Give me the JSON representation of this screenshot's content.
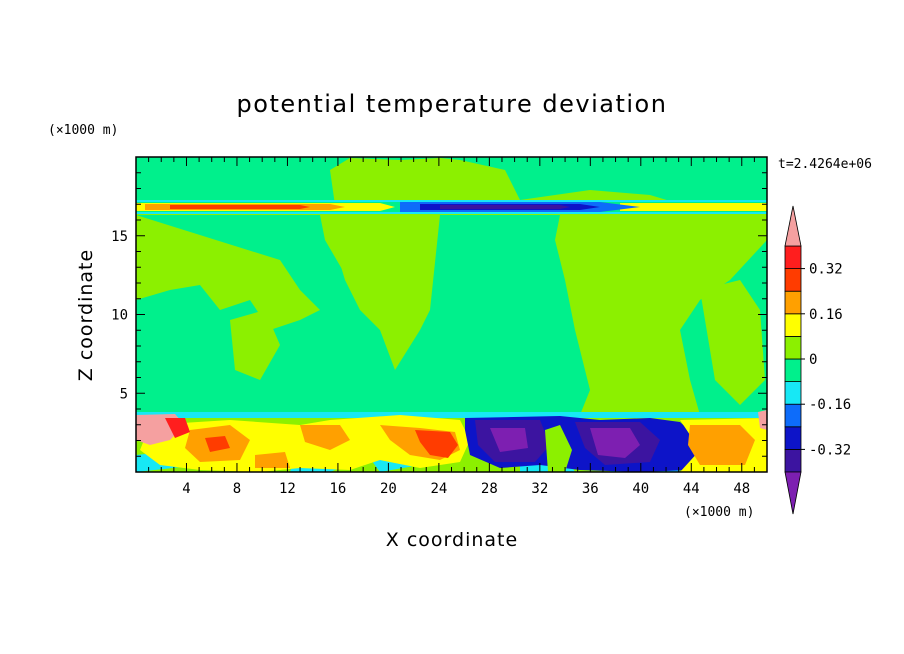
{
  "chart_data": {
    "type": "heatmap",
    "title": "potential temperature deviation",
    "xlabel": "X coordinate",
    "ylabel": "Z coordinate",
    "x_unit": "(×1000 m)",
    "y_unit": "(×1000 m)",
    "time_label": "t=2.4264e+06",
    "xlim": [
      0,
      50
    ],
    "ylim": [
      0,
      20
    ],
    "x_ticks": [
      4,
      8,
      12,
      16,
      20,
      24,
      28,
      32,
      36,
      40,
      44,
      48
    ],
    "y_ticks": [
      5,
      10,
      15
    ],
    "colorbar": {
      "levels": [
        -0.4,
        -0.32,
        -0.24,
        -0.16,
        -0.08,
        0,
        0.08,
        0.16,
        0.24,
        0.32,
        0.4
      ],
      "tick_labels": [
        "0.32",
        "0.16",
        "0",
        "-0.16",
        "-0.32"
      ],
      "tick_values": [
        0.32,
        0.16,
        0,
        -0.16,
        -0.32
      ],
      "colors_low_to_high": [
        "#7d1fb1",
        "#3c14a0",
        "#0d14c8",
        "#0d6cfa",
        "#17e8f5",
        "#00f08c",
        "#8cf000",
        "#ffff00",
        "#ffa000",
        "#ff3c00",
        "#ff1e1e",
        "#f5a0a0"
      ],
      "extend": "both"
    },
    "regions": [
      {
        "name": "background",
        "value": 0.04
      },
      {
        "name": "upper-band-warm",
        "value": 0.2
      },
      {
        "name": "upper-band-cold",
        "value": -0.3
      },
      {
        "name": "lower-warm-left",
        "value": 0.25
      },
      {
        "name": "lower-cold-center",
        "value": -0.35
      },
      {
        "name": "lower-warm-right",
        "value": 0.2
      }
    ]
  }
}
